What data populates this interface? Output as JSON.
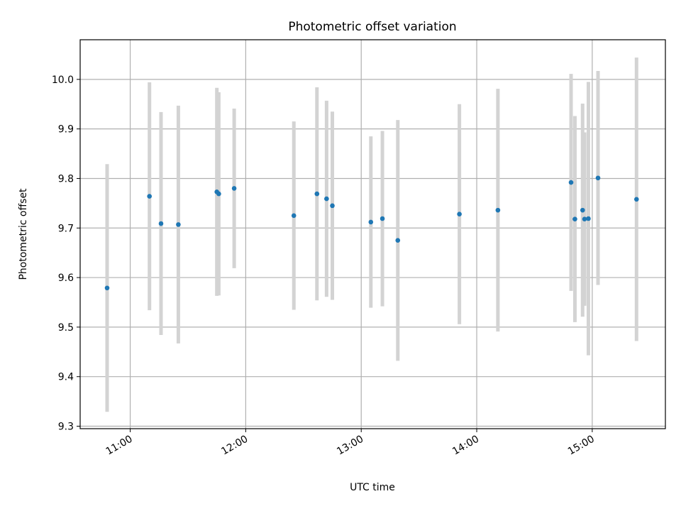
{
  "chart_data": {
    "type": "scatter",
    "title": "Photometric offset variation",
    "xlabel": "UTC time",
    "ylabel": "Photometric offset",
    "x_tick_labels": [
      "11:00",
      "12:00",
      "13:00",
      "14:00",
      "15:00"
    ],
    "x_ticks": [
      "11:00",
      "12:00",
      "13:00",
      "14:00",
      "15:00"
    ],
    "y_tick_labels": [
      "9.3",
      "9.4",
      "9.5",
      "9.6",
      "9.7",
      "9.8",
      "9.9",
      "10.0"
    ],
    "y_ticks": [
      9.3,
      9.4,
      9.5,
      9.6,
      9.7,
      9.8,
      9.9,
      10.0
    ],
    "xlim": [
      "10:34",
      "15:38"
    ],
    "ylim": [
      9.295,
      10.08
    ],
    "grid": true,
    "error_bars": true,
    "colors": {
      "points": "#1f77b4",
      "error_bars": "#d3d3d3",
      "grid": "#b0b0b0"
    },
    "points": [
      {
        "x": "10:48",
        "y": 9.579,
        "err": 0.25
      },
      {
        "x": "11:10",
        "y": 9.764,
        "err": 0.23
      },
      {
        "x": "11:16",
        "y": 9.709,
        "err": 0.225
      },
      {
        "x": "11:25",
        "y": 9.707,
        "err": 0.24
      },
      {
        "x": "11:45",
        "y": 9.773,
        "err": 0.21
      },
      {
        "x": "11:46",
        "y": 9.769,
        "err": 0.205
      },
      {
        "x": "11:54",
        "y": 9.78,
        "err": 0.161
      },
      {
        "x": "12:25",
        "y": 9.725,
        "err": 0.19
      },
      {
        "x": "12:37",
        "y": 9.769,
        "err": 0.215
      },
      {
        "x": "12:42",
        "y": 9.759,
        "err": 0.198
      },
      {
        "x": "12:45",
        "y": 9.745,
        "err": 0.19
      },
      {
        "x": "13:05",
        "y": 9.712,
        "err": 0.173
      },
      {
        "x": "13:11",
        "y": 9.719,
        "err": 0.177
      },
      {
        "x": "13:19",
        "y": 9.675,
        "err": 0.243
      },
      {
        "x": "13:51",
        "y": 9.728,
        "err": 0.222
      },
      {
        "x": "14:11",
        "y": 9.736,
        "err": 0.245
      },
      {
        "x": "14:49",
        "y": 9.792,
        "err": 0.219
      },
      {
        "x": "14:51",
        "y": 9.718,
        "err": 0.208
      },
      {
        "x": "14:55",
        "y": 9.736,
        "err": 0.215
      },
      {
        "x": "14:56",
        "y": 9.718,
        "err": 0.175
      },
      {
        "x": "14:58",
        "y": 9.719,
        "err": 0.276
      },
      {
        "x": "15:03",
        "y": 9.801,
        "err": 0.216
      },
      {
        "x": "15:23",
        "y": 9.758,
        "err": 0.286
      }
    ]
  }
}
